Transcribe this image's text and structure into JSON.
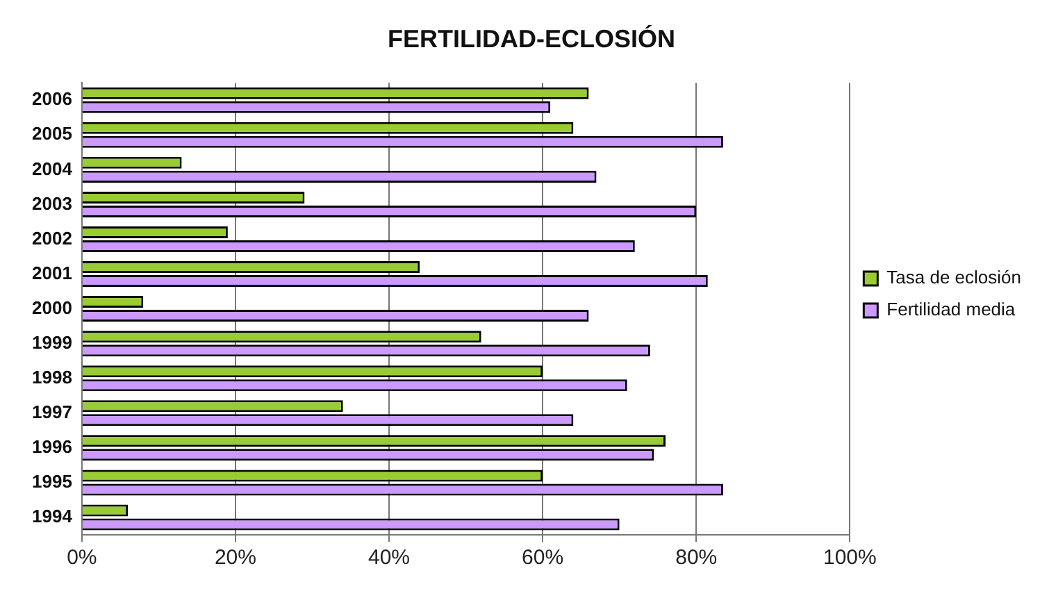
{
  "chart_data": {
    "type": "bar",
    "orientation": "horizontal",
    "title": "FERTILIDAD-ECLOSIÓN",
    "categories": [
      "2006",
      "2005",
      "2004",
      "2003",
      "2002",
      "2001",
      "2000",
      "1999",
      "1998",
      "1997",
      "1996",
      "1995",
      "1994"
    ],
    "series": [
      {
        "name": "Tasa de eclosión",
        "color": "#99cc33",
        "values": [
          66,
          64,
          13,
          29,
          19,
          44,
          8,
          52,
          60,
          34,
          76,
          60,
          6
        ]
      },
      {
        "name": "Fertilidad media",
        "color": "#cc99ff",
        "values": [
          61,
          83.5,
          67,
          80,
          72,
          81.5,
          66,
          74,
          71,
          64,
          74.5,
          83.5,
          70
        ]
      }
    ],
    "xlim": [
      0,
      100
    ],
    "xticks": [
      {
        "value": 0,
        "label": "0%"
      },
      {
        "value": 20,
        "label": "20%"
      },
      {
        "value": 40,
        "label": "40%"
      },
      {
        "value": 60,
        "label": "60%"
      },
      {
        "value": 80,
        "label": "80%"
      },
      {
        "value": 100,
        "label": "100%"
      }
    ],
    "grid": "x",
    "legend": "right"
  }
}
